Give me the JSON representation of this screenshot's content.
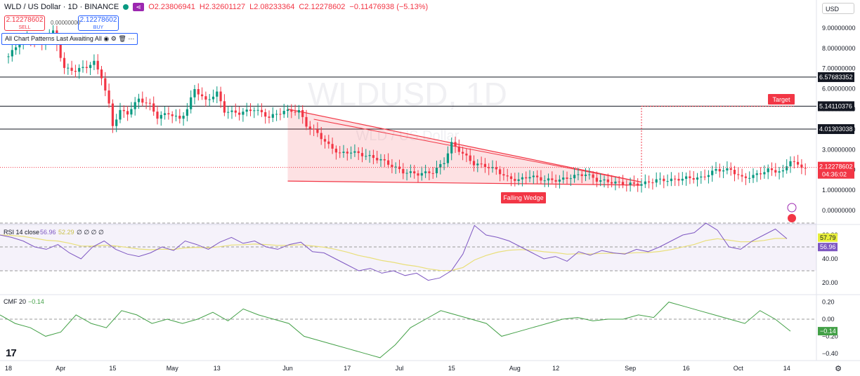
{
  "header": {
    "symbol": "WLD / US Dollar · 1D · BINANCE",
    "open": "O2.23806941",
    "high": "H2.32601127",
    "low": "L2.08233364",
    "close": "C2.12278602",
    "change": "−0.11476938 (−5.13%)"
  },
  "trade": {
    "sell_price": "2.12278602",
    "sell_label": "SELL",
    "buy_price": "2.12278602",
    "buy_label": "BUY",
    "spread": "0.00000000"
  },
  "patterns_bar": {
    "label": "All Chart Patterns Last Awaiting All"
  },
  "currency": "USD",
  "watermark": {
    "line1": "WLDUSD, 1D",
    "line2": "WLD / US Dollar"
  },
  "price_axis": [
    "9.00000000",
    "8.00000000",
    "7.00000000",
    "6.00000000",
    "5.00000000",
    "4.00000000",
    "3.00000000",
    "2.00000000",
    "1.00000000",
    "0.00000000"
  ],
  "levels": [
    {
      "value": 6.57683352,
      "label": "6.57683352"
    },
    {
      "value": 5.14110376,
      "label": "5.14110376"
    },
    {
      "value": 4.01303038,
      "label": "4.01303038"
    }
  ],
  "last_price": {
    "label": "2.12278602",
    "countdown": "04:36:02",
    "color": "#f23645"
  },
  "annotations": {
    "target": "Target",
    "pattern": "Falling Wedge"
  },
  "rsi": {
    "label": "RSI 14 close",
    "value1": "56.96",
    "value2": "52.29",
    "extras": "∅ ∅ ∅ ∅",
    "axis": [
      "60.00",
      "40.00",
      "20.00"
    ],
    "badge_ma": "57.79",
    "badge_rsi": "56.96"
  },
  "cmf": {
    "label": "CMF 20",
    "value": "−0.14",
    "axis": [
      "0.20",
      "0.00",
      "−0.20",
      "−0.40"
    ],
    "badge": "−0.14"
  },
  "time_axis": [
    {
      "label": "18",
      "day": 0
    },
    {
      "label": "Apr",
      "day": 14
    },
    {
      "label": "15",
      "day": 28
    },
    {
      "label": "May",
      "day": 44
    },
    {
      "label": "13",
      "day": 56
    },
    {
      "label": "Jun",
      "day": 75
    },
    {
      "label": "17",
      "day": 91
    },
    {
      "label": "Jul",
      "day": 105
    },
    {
      "label": "15",
      "day": 119
    },
    {
      "label": "Aug",
      "day": 136
    },
    {
      "label": "12",
      "day": 147
    },
    {
      "label": "Sep",
      "day": 167
    },
    {
      "label": "16",
      "day": 182
    },
    {
      "label": "Oct",
      "day": 196
    },
    {
      "label": "14",
      "day": 209
    }
  ],
  "chart_data": {
    "type": "candlestick",
    "title": "WLD / US Dollar · 1D · BINANCE",
    "ylim": [
      -0.3,
      9.5
    ],
    "close_series": [
      {
        "day": 0,
        "close": 7.6
      },
      {
        "day": 3,
        "close": 8.3
      },
      {
        "day": 6,
        "close": 8.5
      },
      {
        "day": 9,
        "close": 8.2
      },
      {
        "day": 12,
        "close": 8.8
      },
      {
        "day": 15,
        "close": 7.0
      },
      {
        "day": 18,
        "close": 6.9
      },
      {
        "day": 21,
        "close": 7.1
      },
      {
        "day": 23,
        "close": 7.3
      },
      {
        "day": 25,
        "close": 6.6
      },
      {
        "day": 27,
        "close": 5.2
      },
      {
        "day": 28,
        "close": 4.2
      },
      {
        "day": 30,
        "close": 4.9
      },
      {
        "day": 32,
        "close": 4.8
      },
      {
        "day": 35,
        "close": 5.5
      },
      {
        "day": 38,
        "close": 5.2
      },
      {
        "day": 40,
        "close": 4.6
      },
      {
        "day": 43,
        "close": 4.8
      },
      {
        "day": 46,
        "close": 4.5
      },
      {
        "day": 48,
        "close": 5.0
      },
      {
        "day": 50,
        "close": 6.0
      },
      {
        "day": 53,
        "close": 5.4
      },
      {
        "day": 56,
        "close": 5.8
      },
      {
        "day": 58,
        "close": 4.9
      },
      {
        "day": 62,
        "close": 4.8
      },
      {
        "day": 66,
        "close": 5.0
      },
      {
        "day": 70,
        "close": 4.6
      },
      {
        "day": 74,
        "close": 4.9
      },
      {
        "day": 78,
        "close": 4.9
      },
      {
        "day": 80,
        "close": 4.2
      },
      {
        "day": 83,
        "close": 3.8
      },
      {
        "day": 86,
        "close": 3.2
      },
      {
        "day": 89,
        "close": 2.8
      },
      {
        "day": 92,
        "close": 2.9
      },
      {
        "day": 96,
        "close": 2.7
      },
      {
        "day": 100,
        "close": 2.5
      },
      {
        "day": 103,
        "close": 2.2
      },
      {
        "day": 106,
        "close": 1.9
      },
      {
        "day": 110,
        "close": 1.8
      },
      {
        "day": 114,
        "close": 1.9
      },
      {
        "day": 117,
        "close": 2.4
      },
      {
        "day": 119,
        "close": 3.3
      },
      {
        "day": 122,
        "close": 2.8
      },
      {
        "day": 125,
        "close": 2.3
      },
      {
        "day": 128,
        "close": 2.2
      },
      {
        "day": 131,
        "close": 2.0
      },
      {
        "day": 134,
        "close": 1.6
      },
      {
        "day": 137,
        "close": 1.5
      },
      {
        "day": 140,
        "close": 1.7
      },
      {
        "day": 144,
        "close": 1.5
      },
      {
        "day": 148,
        "close": 1.5
      },
      {
        "day": 152,
        "close": 1.7
      },
      {
        "day": 155,
        "close": 1.8
      },
      {
        "day": 158,
        "close": 1.5
      },
      {
        "day": 162,
        "close": 1.4
      },
      {
        "day": 166,
        "close": 1.3
      },
      {
        "day": 170,
        "close": 1.3
      },
      {
        "day": 174,
        "close": 1.5
      },
      {
        "day": 178,
        "close": 1.5
      },
      {
        "day": 182,
        "close": 1.6
      },
      {
        "day": 186,
        "close": 1.6
      },
      {
        "day": 190,
        "close": 2.0
      },
      {
        "day": 194,
        "close": 2.0
      },
      {
        "day": 197,
        "close": 1.6
      },
      {
        "day": 200,
        "close": 1.7
      },
      {
        "day": 204,
        "close": 2.0
      },
      {
        "day": 208,
        "close": 1.9
      },
      {
        "day": 210,
        "close": 2.5
      },
      {
        "day": 212,
        "close": 2.2
      },
      {
        "day": 214,
        "close": 2.12
      }
    ],
    "wedge": {
      "start_day": 75,
      "end_day": 170,
      "upper": [
        5.0,
        1.4
      ],
      "lower": [
        1.45,
        1.25
      ]
    },
    "target_level": 5.14110376,
    "rsi_values": [
      60,
      58,
      55,
      50,
      48,
      52,
      45,
      40,
      50,
      55,
      48,
      44,
      42,
      45,
      50,
      47,
      55,
      52,
      48,
      54,
      58,
      53,
      55,
      50,
      48,
      52,
      54,
      46,
      45,
      40,
      35,
      30,
      32,
      28,
      30,
      26,
      28,
      22,
      24,
      30,
      44,
      68,
      60,
      58,
      55,
      50,
      45,
      40,
      42,
      38,
      46,
      43,
      47,
      45,
      44,
      48,
      46,
      50,
      55,
      60,
      62,
      70,
      64,
      50,
      48,
      55,
      60,
      65,
      56.96
    ],
    "cmf_values": [
      0.05,
      -0.05,
      -0.1,
      -0.2,
      -0.15,
      0.05,
      -0.05,
      -0.1,
      0.1,
      0.05,
      -0.05,
      0.0,
      -0.05,
      0.0,
      0.08,
      -0.02,
      0.12,
      0.05,
      0.0,
      -0.05,
      -0.2,
      -0.25,
      -0.3,
      -0.35,
      -0.4,
      -0.45,
      -0.3,
      -0.1,
      0.0,
      0.1,
      0.05,
      0.0,
      -0.05,
      -0.2,
      -0.15,
      -0.1,
      -0.05,
      0.0,
      0.02,
      -0.02,
      0.0,
      0.0,
      0.05,
      0.02,
      0.2,
      0.15,
      0.1,
      0.05,
      0.0,
      -0.05,
      0.1,
      0.0,
      -0.14
    ]
  }
}
